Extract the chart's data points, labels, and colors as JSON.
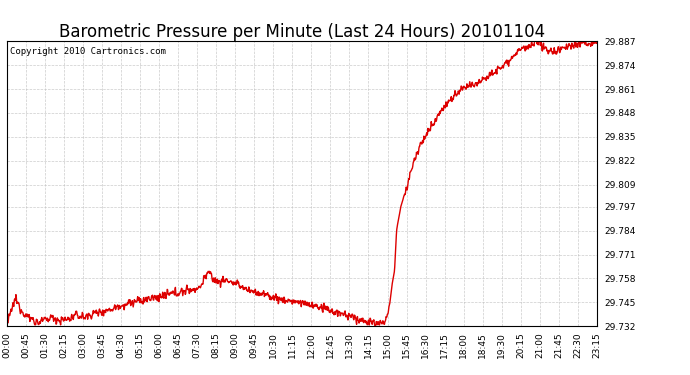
{
  "title": "Barometric Pressure per Minute (Last 24 Hours) 20101104",
  "copyright": "Copyright 2010 Cartronics.com",
  "line_color": "#dd0000",
  "bg_color": "#ffffff",
  "plot_bg_color": "#ffffff",
  "grid_color": "#c0c0c0",
  "ylim": [
    29.732,
    29.887
  ],
  "yticks": [
    29.732,
    29.745,
    29.758,
    29.771,
    29.784,
    29.797,
    29.809,
    29.822,
    29.835,
    29.848,
    29.861,
    29.874,
    29.887
  ],
  "xtick_labels": [
    "00:00",
    "00:45",
    "01:30",
    "02:15",
    "03:00",
    "03:45",
    "04:30",
    "05:15",
    "06:00",
    "06:45",
    "07:30",
    "08:15",
    "09:00",
    "09:45",
    "10:30",
    "11:15",
    "12:00",
    "12:45",
    "13:30",
    "14:15",
    "15:00",
    "15:45",
    "16:30",
    "17:15",
    "18:00",
    "18:45",
    "19:30",
    "20:15",
    "21:00",
    "21:45",
    "22:30",
    "23:15"
  ],
  "title_fontsize": 12,
  "copyright_fontsize": 6.5,
  "tick_fontsize": 6.5,
  "line_width": 1.0,
  "keypoints": [
    [
      0,
      29.733
    ],
    [
      20,
      29.747
    ],
    [
      35,
      29.741
    ],
    [
      50,
      29.737
    ],
    [
      60,
      29.736
    ],
    [
      75,
      29.734
    ],
    [
      90,
      29.735
    ],
    [
      110,
      29.737
    ],
    [
      130,
      29.735
    ],
    [
      150,
      29.736
    ],
    [
      170,
      29.738
    ],
    [
      190,
      29.737
    ],
    [
      210,
      29.739
    ],
    [
      230,
      29.74
    ],
    [
      250,
      29.741
    ],
    [
      270,
      29.743
    ],
    [
      290,
      29.744
    ],
    [
      310,
      29.745
    ],
    [
      330,
      29.746
    ],
    [
      350,
      29.747
    ],
    [
      370,
      29.748
    ],
    [
      390,
      29.749
    ],
    [
      410,
      29.75
    ],
    [
      430,
      29.751
    ],
    [
      450,
      29.752
    ],
    [
      470,
      29.753
    ],
    [
      490,
      29.762
    ],
    [
      500,
      29.758
    ],
    [
      515,
      29.756
    ],
    [
      530,
      29.757
    ],
    [
      540,
      29.757
    ],
    [
      555,
      29.755
    ],
    [
      570,
      29.754
    ],
    [
      585,
      29.752
    ],
    [
      600,
      29.751
    ],
    [
      615,
      29.75
    ],
    [
      630,
      29.749
    ],
    [
      645,
      29.748
    ],
    [
      660,
      29.747
    ],
    [
      675,
      29.746
    ],
    [
      690,
      29.746
    ],
    [
      705,
      29.745
    ],
    [
      720,
      29.745
    ],
    [
      735,
      29.744
    ],
    [
      750,
      29.743
    ],
    [
      765,
      29.742
    ],
    [
      780,
      29.741
    ],
    [
      795,
      29.74
    ],
    [
      810,
      29.739
    ],
    [
      825,
      29.738
    ],
    [
      840,
      29.737
    ],
    [
      855,
      29.736
    ],
    [
      870,
      29.735
    ],
    [
      885,
      29.734
    ],
    [
      900,
      29.734
    ],
    [
      915,
      29.733
    ],
    [
      925,
      29.735
    ],
    [
      935,
      29.748
    ],
    [
      940,
      29.756
    ],
    [
      945,
      29.762
    ],
    [
      950,
      29.784
    ],
    [
      960,
      29.797
    ],
    [
      975,
      29.808
    ],
    [
      990,
      29.82
    ],
    [
      1005,
      29.829
    ],
    [
      1020,
      29.835
    ],
    [
      1035,
      29.841
    ],
    [
      1050,
      29.847
    ],
    [
      1065,
      29.851
    ],
    [
      1080,
      29.855
    ],
    [
      1095,
      29.858
    ],
    [
      1110,
      29.861
    ],
    [
      1125,
      29.862
    ],
    [
      1140,
      29.864
    ],
    [
      1155,
      29.866
    ],
    [
      1170,
      29.868
    ],
    [
      1185,
      29.87
    ],
    [
      1200,
      29.872
    ],
    [
      1215,
      29.875
    ],
    [
      1230,
      29.878
    ],
    [
      1245,
      29.881
    ],
    [
      1260,
      29.883
    ],
    [
      1275,
      29.884
    ],
    [
      1290,
      29.886
    ],
    [
      1305,
      29.885
    ],
    [
      1320,
      29.882
    ],
    [
      1335,
      29.881
    ],
    [
      1350,
      29.883
    ],
    [
      1365,
      29.884
    ],
    [
      1380,
      29.885
    ],
    [
      1395,
      29.886
    ],
    [
      1410,
      29.886
    ],
    [
      1425,
      29.885
    ],
    [
      1439,
      29.887
    ]
  ]
}
